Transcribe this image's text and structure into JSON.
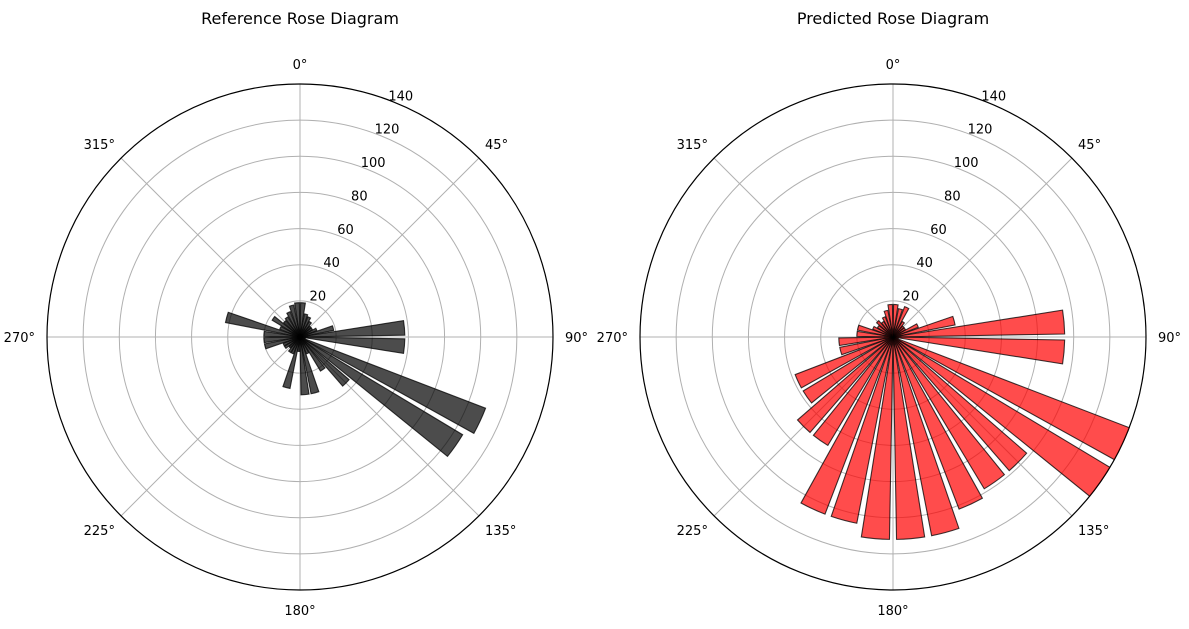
{
  "chart_data": [
    {
      "type": "polar-bar",
      "title": "Reference Rose Diagram",
      "color": "#000000",
      "rmax": 140,
      "radial_ticks": [
        "20",
        "40",
        "60",
        "80",
        "100",
        "120",
        "140"
      ],
      "radial_tick_values": [
        20,
        40,
        60,
        80,
        100,
        120,
        140
      ],
      "angular_ticks": [
        "0°",
        "45°",
        "90°",
        "135°",
        "180°",
        "225°",
        "270°",
        "315°"
      ],
      "angular_tick_values": [
        0,
        45,
        90,
        135,
        180,
        225,
        270,
        315
      ],
      "bin_width_deg": 10,
      "directions_deg": [
        5,
        15,
        25,
        35,
        45,
        55,
        65,
        75,
        85,
        95,
        105,
        115,
        125,
        135,
        145,
        155,
        165,
        175,
        185,
        195,
        205,
        215,
        225,
        235,
        245,
        255,
        265,
        275,
        285,
        295,
        305,
        315,
        325,
        335,
        345,
        355
      ],
      "values": [
        19,
        13,
        12,
        10,
        8,
        8,
        10,
        19,
        58,
        58,
        3,
        110,
        105,
        36,
        22,
        10,
        32,
        32,
        8,
        29,
        10,
        10,
        8,
        10,
        10,
        20,
        20,
        20,
        42,
        12,
        18,
        12,
        13,
        15,
        18,
        19
      ]
    },
    {
      "type": "polar-bar",
      "title": "Predicted Rose Diagram",
      "color": "#ff0000",
      "rmax": 140,
      "radial_ticks": [
        "20",
        "40",
        "60",
        "80",
        "100",
        "120",
        "140"
      ],
      "radial_tick_values": [
        20,
        40,
        60,
        80,
        100,
        120,
        140
      ],
      "angular_ticks": [
        "0°",
        "45°",
        "90°",
        "135°",
        "180°",
        "225°",
        "270°",
        "315°"
      ],
      "angular_tick_values": [
        0,
        45,
        90,
        135,
        180,
        225,
        270,
        315
      ],
      "bin_width_deg": 10,
      "directions_deg": [
        5,
        15,
        25,
        35,
        45,
        55,
        65,
        75,
        85,
        95,
        105,
        115,
        125,
        135,
        145,
        155,
        165,
        175,
        185,
        195,
        205,
        215,
        225,
        235,
        245,
        255,
        265,
        275,
        285,
        295,
        305,
        315,
        325,
        335,
        345,
        355
      ],
      "values": [
        18,
        16,
        18,
        10,
        8,
        8,
        15,
        35,
        95,
        95,
        3,
        143,
        143,
        98,
        98,
        102,
        112,
        112,
        112,
        105,
        105,
        70,
        70,
        58,
        58,
        30,
        30,
        20,
        20,
        12,
        10,
        12,
        10,
        12,
        15,
        18
      ]
    }
  ]
}
